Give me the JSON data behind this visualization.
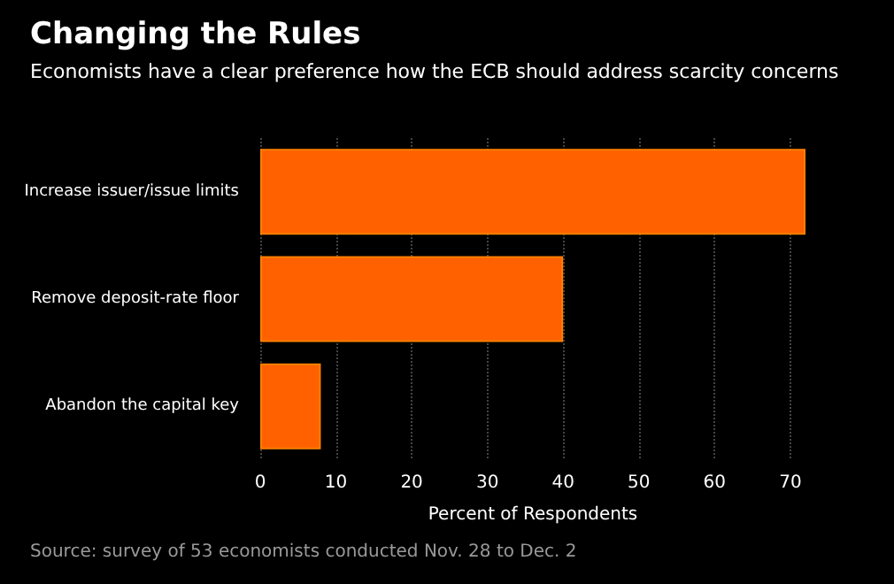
{
  "chart_data": {
    "type": "bar",
    "orientation": "horizontal",
    "title": "Changing the Rules",
    "subtitle": "Economists have a clear preference how the ECB should address scarcity concerns",
    "categories": [
      "Increase issuer/issue limits",
      "Remove deposit-rate floor",
      "Abandon the capital key"
    ],
    "values": [
      72,
      40,
      8
    ],
    "color": "#ff6000",
    "xlabel": "Percent of Respondents",
    "xlim": [
      0,
      72
    ],
    "xticks": [
      0,
      10,
      20,
      30,
      40,
      50,
      60,
      70
    ],
    "grid": "x",
    "annotations": [
      "Source: survey of 53 economists conducted Nov. 28 to Dec. 2"
    ]
  }
}
